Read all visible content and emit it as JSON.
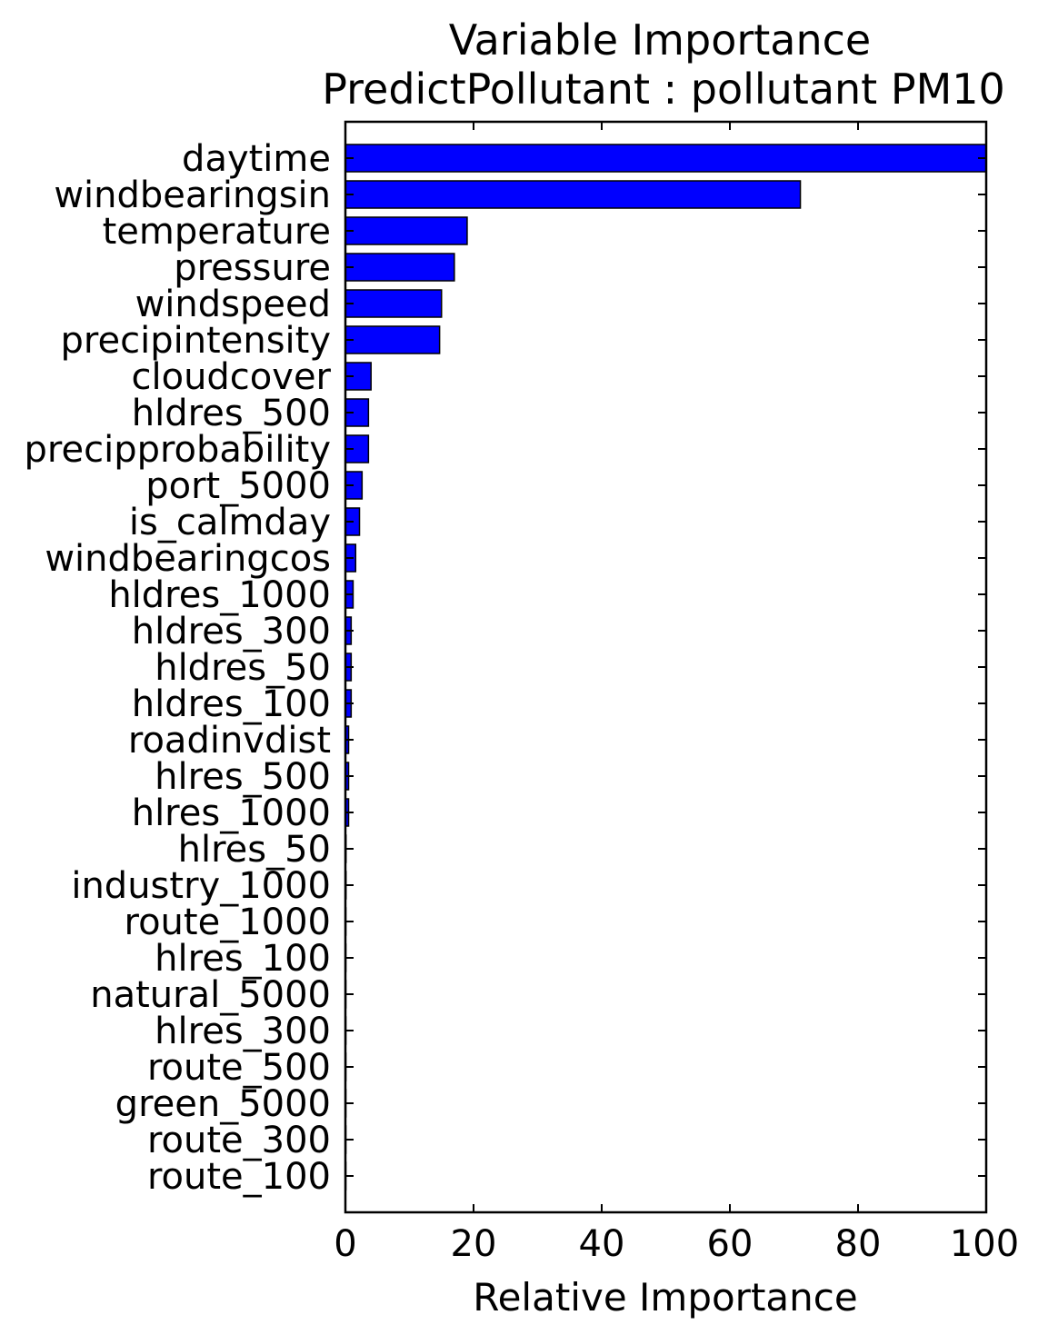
{
  "chart_data": {
    "type": "bar",
    "orientation": "horizontal",
    "title_line1": "Variable Importance",
    "title_line2": "PredictPollutant : pollutant PM10",
    "xlabel": "Relative Importance",
    "ylabel": "",
    "xlim": [
      0,
      100
    ],
    "xticks": [
      0,
      20,
      40,
      60,
      80,
      100
    ],
    "grid": false,
    "bar_color": "#0000ff",
    "categories": [
      "daytime",
      "windbearingsin",
      "temperature",
      "pressure",
      "windspeed",
      "precipintensity",
      "cloudcover",
      "hldres_500",
      "precipprobability",
      "port_5000",
      "is_calmday",
      "windbearingcos",
      "hldres_1000",
      "hldres_300",
      "hldres_50",
      "hldres_100",
      "roadinvdist",
      "hlres_500",
      "hlres_1000",
      "hlres_50",
      "industry_1000",
      "route_1000",
      "hlres_100",
      "natural_5000",
      "hlres_300",
      "route_500",
      "green_5000",
      "route_300",
      "route_100"
    ],
    "values": [
      100,
      71,
      19,
      17,
      15,
      14.7,
      4,
      3.6,
      3.6,
      2.6,
      2.2,
      1.6,
      1.2,
      0.9,
      0.9,
      0.9,
      0.5,
      0.5,
      0.5,
      0.1,
      0.1,
      0.05,
      0.05,
      0.05,
      0.05,
      0.05,
      0.05,
      0.05,
      0.05
    ]
  }
}
